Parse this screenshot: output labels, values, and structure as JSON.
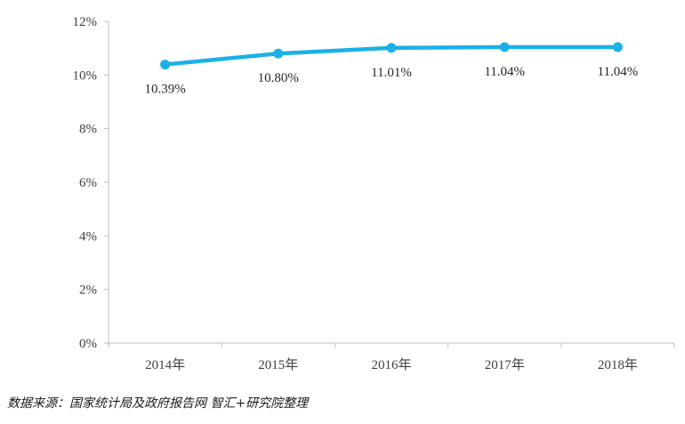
{
  "chart_data": {
    "type": "line",
    "categories": [
      "2014年",
      "2015年",
      "2016年",
      "2017年",
      "2018年"
    ],
    "series": [
      {
        "values": [
          10.39,
          10.8,
          11.01,
          11.04,
          11.04
        ],
        "labels": [
          "10.39%",
          "10.80%",
          "11.01%",
          "11.04%",
          "11.04%"
        ],
        "color": "#1bb1e6"
      }
    ],
    "ylim": [
      0,
      12
    ],
    "yticks": [
      0,
      2,
      4,
      6,
      8,
      10,
      12
    ],
    "ytick_labels": [
      "0%",
      "2%",
      "4%",
      "6%",
      "8%",
      "10%",
      "12%"
    ],
    "grid": false,
    "axis_color": "#bfbfbf"
  },
  "source_note": "数据来源：国家统计局及政府报告网 智汇+研究院整理"
}
